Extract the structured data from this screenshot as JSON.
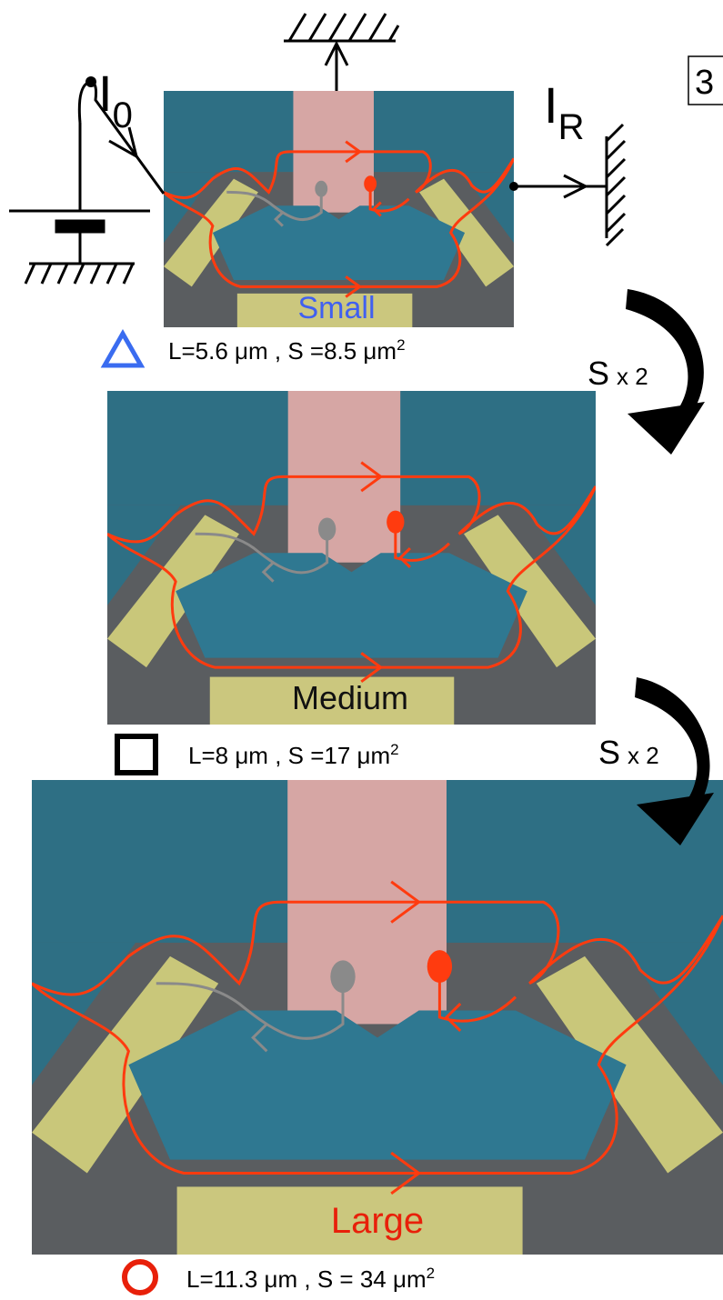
{
  "circuit": {
    "source": {
      "symbol": "I",
      "subscript": "0"
    },
    "drain": {
      "symbol": "I",
      "subscript": "R"
    }
  },
  "panel_tag": "3",
  "panels": [
    {
      "label": "Small",
      "caption": "L=5.6 μm , S =8.5 μm",
      "caption_sup": "2"
    },
    {
      "label": "Medium",
      "caption": "L=8 μm , S =17 μm",
      "caption_sup": "2"
    },
    {
      "label": "Large",
      "caption": "L=11.3 μm , S = 34 μm",
      "caption_sup": "2"
    }
  ],
  "arrows": [
    {
      "label": "S",
      "factor": "x 2"
    },
    {
      "label": "S",
      "factor": "x 2"
    }
  ]
}
